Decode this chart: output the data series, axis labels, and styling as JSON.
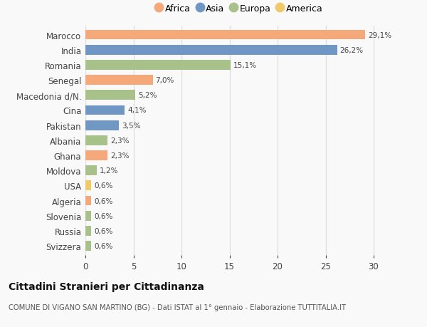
{
  "countries": [
    "Marocco",
    "India",
    "Romania",
    "Senegal",
    "Macedonia d/N.",
    "Cina",
    "Pakistan",
    "Albania",
    "Ghana",
    "Moldova",
    "USA",
    "Algeria",
    "Slovenia",
    "Russia",
    "Svizzera"
  ],
  "values": [
    29.1,
    26.2,
    15.1,
    7.0,
    5.2,
    4.1,
    3.5,
    2.3,
    2.3,
    1.2,
    0.6,
    0.6,
    0.6,
    0.6,
    0.6
  ],
  "labels": [
    "29,1%",
    "26,2%",
    "15,1%",
    "7,0%",
    "5,2%",
    "4,1%",
    "3,5%",
    "2,3%",
    "2,3%",
    "1,2%",
    "0,6%",
    "0,6%",
    "0,6%",
    "0,6%",
    "0,6%"
  ],
  "continents": [
    "Africa",
    "Asia",
    "Europa",
    "Africa",
    "Europa",
    "Asia",
    "Asia",
    "Europa",
    "Africa",
    "Europa",
    "America",
    "Africa",
    "Europa",
    "Europa",
    "Europa"
  ],
  "colors": {
    "Africa": "#F5A97A",
    "Asia": "#7096C4",
    "Europa": "#A8C08A",
    "America": "#F0C96A"
  },
  "legend_order": [
    "Africa",
    "Asia",
    "Europa",
    "America"
  ],
  "title": "Cittadini Stranieri per Cittadinanza",
  "subtitle": "COMUNE DI VIGANO SAN MARTINO (BG) - Dati ISTAT al 1° gennaio - Elaborazione TUTTITALIA.IT",
  "xlim": [
    0,
    32
  ],
  "xticks": [
    0,
    5,
    10,
    15,
    20,
    25,
    30
  ],
  "background_color": "#f9f9f9",
  "grid_color": "#e0e0e0"
}
